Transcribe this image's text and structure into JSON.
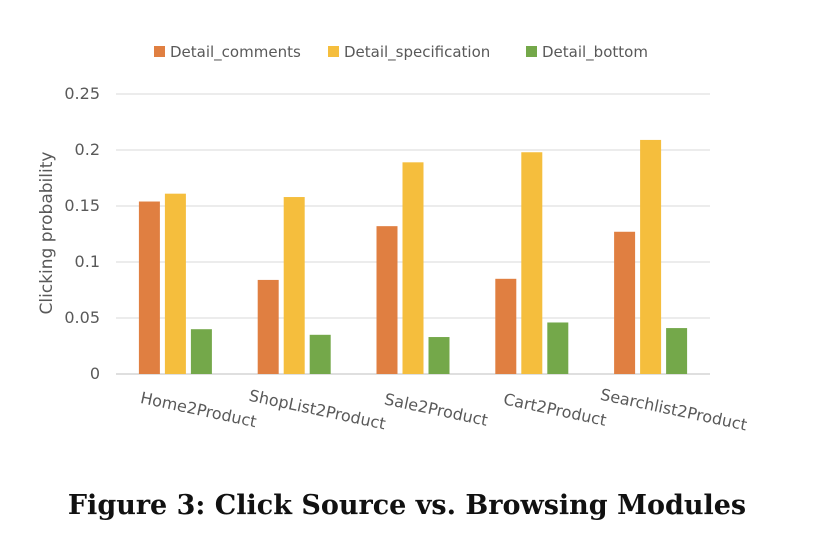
{
  "caption": "Figure 3: Click Source vs. Browsing Modules",
  "chart_data": {
    "type": "bar",
    "title": "",
    "xlabel": "",
    "ylabel": "Clicking probability",
    "ylim": [
      0,
      0.25
    ],
    "yticks": [
      "0",
      "0.05",
      "0.1",
      "0.15",
      "0.2",
      "0.25"
    ],
    "grid": true,
    "legend_position": "top",
    "categories": [
      "Home2Product",
      "ShopList2Product",
      "Sale2Product",
      "Cart2Product",
      "Searchlist2Product"
    ],
    "series": [
      {
        "name": "Detail_comments",
        "color": "#E07F41",
        "values": [
          0.154,
          0.084,
          0.132,
          0.085,
          0.127
        ]
      },
      {
        "name": "Detail_specification",
        "color": "#F5BE3D",
        "values": [
          0.161,
          0.158,
          0.189,
          0.198,
          0.209
        ]
      },
      {
        "name": "Detail_bottom",
        "color": "#74A84A",
        "values": [
          0.04,
          0.035,
          0.033,
          0.046,
          0.041
        ]
      }
    ]
  }
}
